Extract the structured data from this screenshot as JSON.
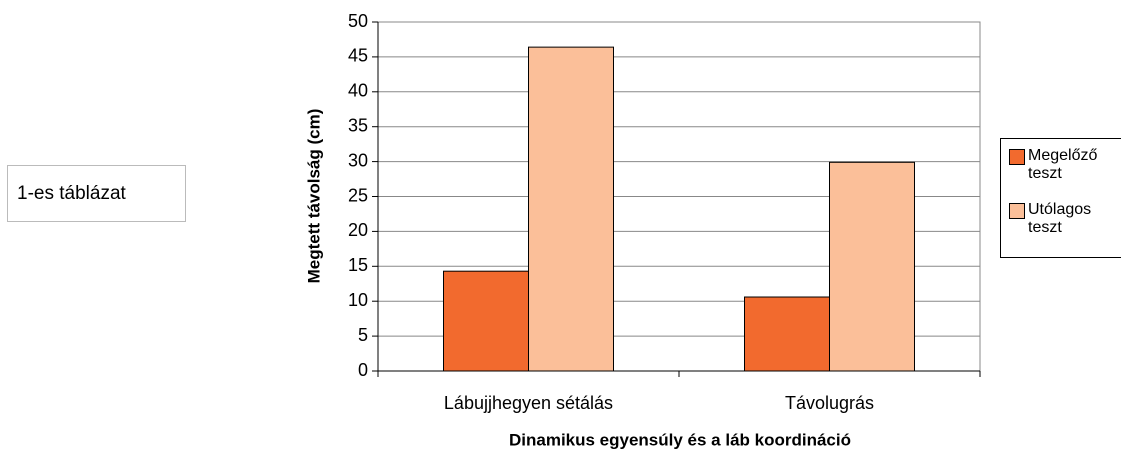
{
  "chart_data": {
    "type": "bar",
    "annotation": "1-es táblázat",
    "xlabel": "Dinamikus egyensúly és a láb koordináció",
    "ylabel": "Megtett távolság (cm)",
    "categories": [
      "Lábujjhegyen sétálás",
      "Távolugrás"
    ],
    "series": [
      {
        "name": "Megelőző teszt",
        "color": "#f26a2e",
        "values": [
          14.3,
          10.6
        ]
      },
      {
        "name": "Utólagos teszt",
        "color": "#fbbf99",
        "values": [
          46.4,
          29.9
        ]
      }
    ],
    "ylim": [
      0,
      50
    ],
    "yticks": [
      0,
      5,
      10,
      15,
      20,
      25,
      30,
      35,
      40,
      45,
      50
    ],
    "grid": true,
    "legend": "right"
  }
}
